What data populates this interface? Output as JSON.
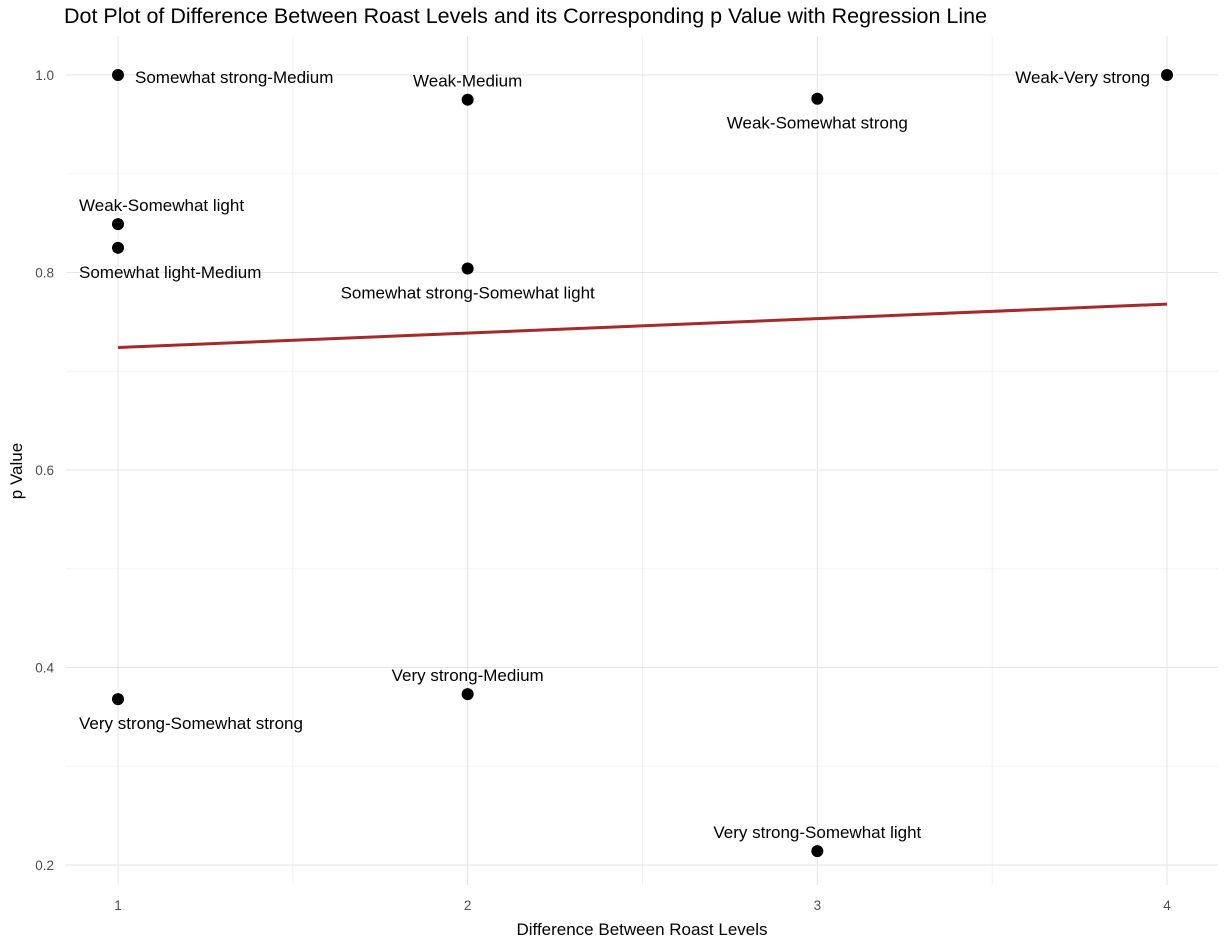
{
  "chart_data": {
    "type": "scatter",
    "title": "Dot Plot of Difference Between Roast Levels and its Corresponding p Value with Regression Line",
    "xlabel": "Difference Between Roast Levels",
    "ylabel": "p Value",
    "xlim": [
      0.85,
      4.15
    ],
    "ylim": [
      0.18,
      1.04
    ],
    "x_ticks": [
      1,
      2,
      3,
      4
    ],
    "y_ticks": [
      0.2,
      0.4,
      0.6,
      0.8,
      1.0
    ],
    "x_tick_labels": [
      "1",
      "2",
      "3",
      "4"
    ],
    "y_tick_labels": [
      "0.2",
      "0.4",
      "0.6",
      "0.8",
      "1.0"
    ],
    "grid": true,
    "legend": "none",
    "point_color": "#000000",
    "points": [
      {
        "x": 1,
        "y": 1.0,
        "label": "Somewhat strong-Medium",
        "label_pos": "right"
      },
      {
        "x": 1,
        "y": 0.849,
        "label": "Weak-Somewhat light",
        "label_pos": "above"
      },
      {
        "x": 1,
        "y": 0.825,
        "label": "Somewhat light-Medium",
        "label_pos": "below"
      },
      {
        "x": 1,
        "y": 0.368,
        "label": "Very strong-Somewhat strong",
        "label_pos": "below"
      },
      {
        "x": 2,
        "y": 0.975,
        "label": "Weak-Medium",
        "label_pos": "above"
      },
      {
        "x": 2,
        "y": 0.804,
        "label": "Somewhat strong-Somewhat light",
        "label_pos": "below"
      },
      {
        "x": 2,
        "y": 0.373,
        "label": "Very strong-Medium",
        "label_pos": "above"
      },
      {
        "x": 3,
        "y": 0.976,
        "label": "Weak-Somewhat strong",
        "label_pos": "below"
      },
      {
        "x": 3,
        "y": 0.214,
        "label": "Very strong-Somewhat light",
        "label_pos": "above"
      },
      {
        "x": 4,
        "y": 1.0,
        "label": "Weak-Very strong",
        "label_pos": "left"
      }
    ],
    "regression_line": {
      "color": "#a52a2a",
      "x": [
        1,
        4
      ],
      "y": [
        0.724,
        0.768
      ]
    }
  }
}
